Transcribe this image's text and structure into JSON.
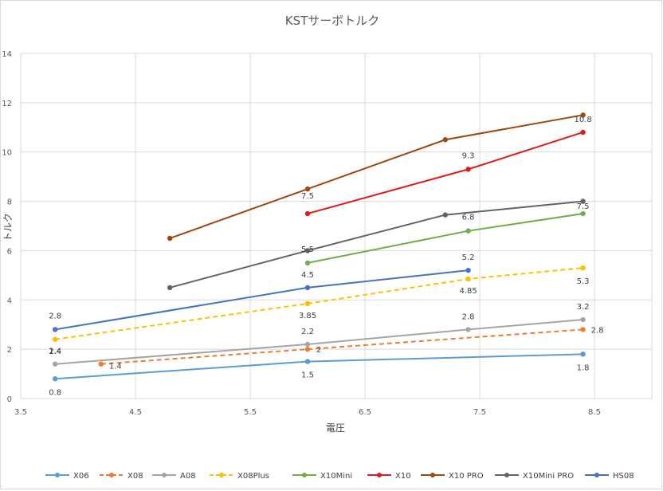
{
  "chart_data": {
    "type": "line",
    "title": "KSTサーボトルク",
    "xlabel": "電圧",
    "ylabel": "トルク",
    "xlim": [
      3.5,
      9
    ],
    "ylim": [
      0,
      14
    ],
    "xticks": [
      "3.5",
      "4.5",
      "5.5",
      "6.5",
      "7.5",
      "8.5"
    ],
    "xtick_values": [
      3.5,
      4.5,
      5.5,
      6.5,
      7.5,
      8.5
    ],
    "yticks": [
      "0",
      "2",
      "4",
      "6",
      "8",
      "10",
      "12",
      "14"
    ],
    "ytick_values": [
      0,
      2,
      4,
      6,
      8,
      10,
      12,
      14
    ],
    "grid": "vertical-and-horizontal",
    "legend_position": "bottom",
    "series": [
      {
        "name": "X06",
        "color": "#5B9BD5",
        "dashed": false,
        "points": [
          {
            "x": 3.8,
            "y": 0.8,
            "label": "0.8"
          },
          {
            "x": 6.0,
            "y": 1.5,
            "label": "1.5"
          },
          {
            "x": 8.4,
            "y": 1.8,
            "label": "1.8"
          }
        ]
      },
      {
        "name": "X08",
        "color": "#ED7D31",
        "dashed": true,
        "points": [
          {
            "x": 4.2,
            "y": 1.4,
            "label": "1.4"
          },
          {
            "x": 6.0,
            "y": 2.0,
            "label": "2"
          },
          {
            "x": 8.4,
            "y": 2.8,
            "label": "2.8"
          }
        ]
      },
      {
        "name": "A08",
        "color": "#A5A5A5",
        "dashed": false,
        "points": [
          {
            "x": 3.8,
            "y": 1.4,
            "label": "1.4"
          },
          {
            "x": 6.0,
            "y": 2.2,
            "label": "2.2"
          },
          {
            "x": 7.4,
            "y": 2.8,
            "label": "2.8"
          },
          {
            "x": 8.4,
            "y": 3.2,
            "label": "3.2"
          }
        ]
      },
      {
        "name": "X08Plus",
        "color": "#FFC000",
        "dashed": true,
        "points": [
          {
            "x": 3.8,
            "y": 2.4,
            "label": "2.4"
          },
          {
            "x": 6.0,
            "y": 3.85,
            "label": "3.85"
          },
          {
            "x": 7.4,
            "y": 4.85,
            "label": "4.85"
          },
          {
            "x": 8.4,
            "y": 5.3,
            "label": "5.3"
          }
        ]
      },
      {
        "name": "X10Mini",
        "color": "#70AD47",
        "dashed": false,
        "points": [
          {
            "x": 6.0,
            "y": 5.5,
            "label": "5.5"
          },
          {
            "x": 7.4,
            "y": 6.8,
            "label": "6.8"
          },
          {
            "x": 8.4,
            "y": 7.5,
            "label": "7.5"
          }
        ]
      },
      {
        "name": "X10",
        "color": "#E31A1C",
        "dashed": false,
        "points": [
          {
            "x": 6.0,
            "y": 7.5,
            "label": "7.5"
          },
          {
            "x": 7.4,
            "y": 9.3,
            "label": "9.3"
          },
          {
            "x": 8.4,
            "y": 10.8,
            "label": "10.8"
          }
        ]
      },
      {
        "name": "X10 PRO",
        "color": "#9E480E",
        "dashed": false,
        "points": [
          {
            "x": 4.8,
            "y": 6.5
          },
          {
            "x": 6.0,
            "y": 8.5
          },
          {
            "x": 7.2,
            "y": 10.5
          },
          {
            "x": 8.4,
            "y": 11.5
          }
        ]
      },
      {
        "name": "X10Mini PRO",
        "color": "#636363",
        "dashed": false,
        "points": [
          {
            "x": 4.8,
            "y": 4.5
          },
          {
            "x": 6.0,
            "y": 6.0
          },
          {
            "x": 7.2,
            "y": 7.45
          },
          {
            "x": 8.4,
            "y": 8.0
          }
        ]
      },
      {
        "name": "HS08",
        "color": "#4472C4",
        "dashed": false,
        "points": [
          {
            "x": 3.8,
            "y": 2.8,
            "label": "2.8"
          },
          {
            "x": 6.0,
            "y": 4.5,
            "label": "4.5"
          },
          {
            "x": 7.4,
            "y": 5.2,
            "label": "5.2"
          }
        ]
      }
    ]
  }
}
